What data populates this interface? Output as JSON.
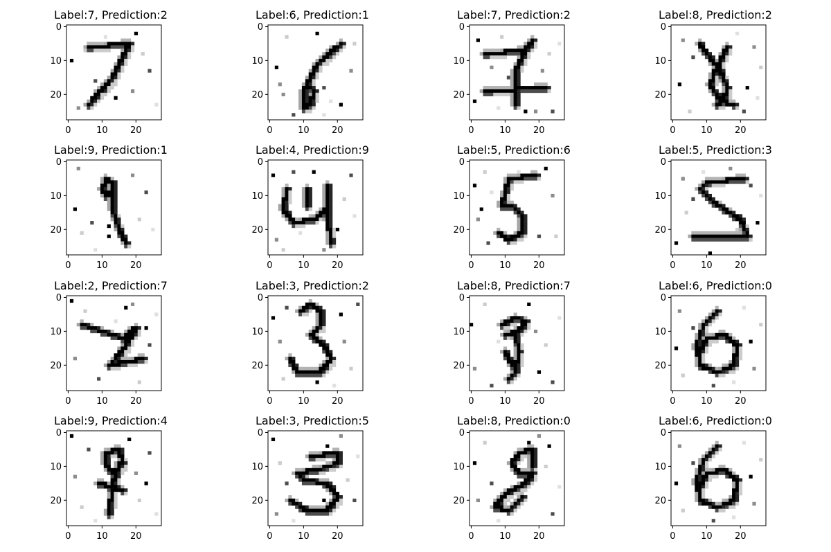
{
  "panels": [
    {
      "title": "Label:7, Prediction:2",
      "label": 7,
      "prediction": 2,
      "strokes": [
        [
          [
            6,
            6
          ],
          [
            18,
            5
          ]
        ],
        [
          [
            18,
            5
          ],
          [
            13,
            15
          ],
          [
            6,
            23
          ]
        ]
      ],
      "noise": [
        [
          1,
          10
        ],
        [
          3,
          24
        ],
        [
          5,
          7
        ],
        [
          8,
          16
        ],
        [
          11,
          3
        ],
        [
          14,
          21
        ],
        [
          19,
          19
        ],
        [
          22,
          8
        ],
        [
          24,
          13
        ],
        [
          26,
          23
        ],
        [
          20,
          2
        ]
      ]
    },
    {
      "title": "Label:6, Prediction:1",
      "label": 6,
      "prediction": 1,
      "strokes": [
        [
          [
            21,
            5
          ],
          [
            14,
            11
          ],
          [
            10,
            19
          ],
          [
            10,
            24
          ],
          [
            12,
            23
          ],
          [
            13,
            19
          ],
          [
            11,
            17
          ]
        ]
      ],
      "noise": [
        [
          2,
          12
        ],
        [
          4,
          20
        ],
        [
          5,
          3
        ],
        [
          16,
          18
        ],
        [
          18,
          22
        ],
        [
          21,
          23
        ],
        [
          24,
          13
        ],
        [
          25,
          5
        ],
        [
          7,
          26
        ],
        [
          16,
          26
        ],
        [
          14,
          2
        ],
        [
          3,
          17
        ]
      ]
    },
    {
      "title": "Label:7, Prediction:2",
      "label": 7,
      "prediction": 2,
      "strokes": [
        [
          [
            4,
            8
          ],
          [
            16,
            7
          ],
          [
            18,
            4
          ]
        ],
        [
          [
            17,
            5
          ],
          [
            13,
            13
          ],
          [
            13,
            23
          ]
        ],
        [
          [
            4,
            19
          ],
          [
            22,
            18
          ]
        ]
      ],
      "noise": [
        [
          2,
          4
        ],
        [
          6,
          12
        ],
        [
          9,
          3
        ],
        [
          11,
          15
        ],
        [
          8,
          24
        ],
        [
          16,
          25
        ],
        [
          21,
          13
        ],
        [
          23,
          8
        ],
        [
          24,
          25
        ],
        [
          26,
          5
        ],
        [
          1,
          22
        ],
        [
          19,
          25
        ]
      ]
    },
    {
      "title": "Label:8, Prediction:2",
      "label": 8,
      "prediction": 2,
      "strokes": [
        [
          [
            8,
            5
          ],
          [
            10,
            8
          ],
          [
            14,
            13
          ],
          [
            16,
            18
          ],
          [
            15,
            22
          ],
          [
            13,
            23
          ]
        ],
        [
          [
            16,
            6
          ],
          [
            14,
            10
          ],
          [
            12,
            14
          ],
          [
            11,
            17
          ],
          [
            14,
            22
          ],
          [
            18,
            23
          ]
        ]
      ],
      "noise": [
        [
          2,
          17
        ],
        [
          3,
          4
        ],
        [
          5,
          25
        ],
        [
          6,
          9
        ],
        [
          19,
          2
        ],
        [
          22,
          18
        ],
        [
          24,
          6
        ],
        [
          26,
          12
        ],
        [
          21,
          25
        ],
        [
          25,
          21
        ]
      ]
    },
    {
      "title": "Label:9, Prediction:1",
      "label": 9,
      "prediction": 1,
      "strokes": [
        [
          [
            10,
            8
          ],
          [
            11,
            5
          ],
          [
            13,
            6
          ],
          [
            13,
            9
          ],
          [
            11,
            10
          ],
          [
            10,
            8
          ]
        ],
        [
          [
            13,
            7
          ],
          [
            13,
            14
          ],
          [
            15,
            20
          ],
          [
            17,
            24
          ]
        ]
      ],
      "noise": [
        [
          2,
          14
        ],
        [
          3,
          2
        ],
        [
          4,
          21
        ],
        [
          7,
          18
        ],
        [
          8,
          26
        ],
        [
          12,
          22
        ],
        [
          19,
          4
        ],
        [
          21,
          17
        ],
        [
          23,
          9
        ],
        [
          25,
          20
        ],
        [
          12,
          19
        ]
      ]
    },
    {
      "title": "Label:4, Prediction:9",
      "label": 4,
      "prediction": 9,
      "strokes": [
        [
          [
            5,
            8
          ],
          [
            4,
            14
          ],
          [
            7,
            18
          ],
          [
            13,
            17
          ],
          [
            17,
            14
          ]
        ],
        [
          [
            17,
            7
          ],
          [
            17,
            16
          ],
          [
            18,
            24
          ]
        ],
        [
          [
            11,
            8
          ],
          [
            11,
            13
          ]
        ]
      ],
      "noise": [
        [
          1,
          4
        ],
        [
          2,
          23
        ],
        [
          4,
          26
        ],
        [
          7,
          3
        ],
        [
          9,
          21
        ],
        [
          13,
          3
        ],
        [
          16,
          26
        ],
        [
          22,
          11
        ],
        [
          24,
          4
        ],
        [
          25,
          16
        ],
        [
          20,
          20
        ]
      ]
    },
    {
      "title": "Label:5, Prediction:6",
      "label": 5,
      "prediction": 6,
      "strokes": [
        [
          [
            19,
            4
          ],
          [
            11,
            5
          ],
          [
            9,
            13
          ],
          [
            12,
            13
          ],
          [
            15,
            16
          ],
          [
            15,
            21
          ],
          [
            11,
            23
          ],
          [
            8,
            21
          ]
        ]
      ],
      "noise": [
        [
          1,
          7
        ],
        [
          2,
          17
        ],
        [
          4,
          3
        ],
        [
          5,
          24
        ],
        [
          6,
          9
        ],
        [
          22,
          2
        ],
        [
          24,
          10
        ],
        [
          25,
          22
        ],
        [
          20,
          22
        ],
        [
          14,
          3
        ],
        [
          3,
          14
        ]
      ]
    },
    {
      "title": "Label:5, Prediction:3",
      "label": 5,
      "prediction": 3,
      "strokes": [
        [
          [
            21,
            5
          ],
          [
            10,
            6
          ],
          [
            8,
            8
          ],
          [
            12,
            12
          ],
          [
            20,
            17
          ],
          [
            22,
            22
          ],
          [
            13,
            22
          ],
          [
            6,
            22
          ]
        ]
      ],
      "noise": [
        [
          1,
          24
        ],
        [
          3,
          5
        ],
        [
          4,
          15
        ],
        [
          6,
          11
        ],
        [
          9,
          3
        ],
        [
          11,
          27
        ],
        [
          17,
          2
        ],
        [
          19,
          20
        ],
        [
          23,
          7
        ],
        [
          26,
          10
        ],
        [
          25,
          18
        ]
      ]
    },
    {
      "title": "Label:2, Prediction:7",
      "label": 2,
      "prediction": 7,
      "strokes": [
        [
          [
            4,
            8
          ],
          [
            10,
            10
          ],
          [
            16,
            12
          ],
          [
            20,
            9
          ],
          [
            17,
            14
          ],
          [
            13,
            19
          ],
          [
            12,
            20
          ],
          [
            17,
            19
          ],
          [
            22,
            18
          ]
        ]
      ],
      "noise": [
        [
          1,
          1
        ],
        [
          2,
          18
        ],
        [
          5,
          4
        ],
        [
          9,
          24
        ],
        [
          14,
          7
        ],
        [
          17,
          3
        ],
        [
          19,
          2
        ],
        [
          21,
          25
        ],
        [
          24,
          14
        ],
        [
          26,
          5
        ],
        [
          23,
          9
        ]
      ]
    },
    {
      "title": "Label:3, Prediction:2",
      "label": 3,
      "prediction": 2,
      "strokes": [
        [
          [
            9,
            4
          ],
          [
            12,
            2
          ],
          [
            15,
            4
          ],
          [
            15,
            8
          ],
          [
            12,
            11
          ],
          [
            16,
            14
          ],
          [
            18,
            18
          ],
          [
            15,
            22
          ],
          [
            8,
            22
          ],
          [
            6,
            18
          ]
        ]
      ],
      "noise": [
        [
          1,
          6
        ],
        [
          3,
          13
        ],
        [
          4,
          24
        ],
        [
          5,
          3
        ],
        [
          7,
          21
        ],
        [
          21,
          5
        ],
        [
          22,
          13
        ],
        [
          24,
          21
        ],
        [
          26,
          2
        ],
        [
          19,
          26
        ],
        [
          14,
          25
        ]
      ]
    },
    {
      "title": "Label:8, Prediction:7",
      "label": 8,
      "prediction": 7,
      "strokes": [
        [
          [
            9,
            8
          ],
          [
            13,
            6
          ],
          [
            16,
            7
          ],
          [
            14,
            10
          ],
          [
            10,
            11
          ]
        ],
        [
          [
            13,
            11
          ],
          [
            14,
            16
          ],
          [
            13,
            22
          ],
          [
            11,
            24
          ]
        ],
        [
          [
            10,
            16
          ],
          [
            12,
            20
          ]
        ]
      ],
      "noise": [
        [
          0,
          8
        ],
        [
          1,
          21
        ],
        [
          4,
          2
        ],
        [
          6,
          26
        ],
        [
          8,
          13
        ],
        [
          17,
          2
        ],
        [
          19,
          10
        ],
        [
          22,
          14
        ],
        [
          24,
          25
        ],
        [
          26,
          6
        ],
        [
          20,
          22
        ]
      ]
    },
    {
      "title": "Label:6, Prediction:0",
      "label": 6,
      "prediction": 0,
      "strokes": [
        [
          [
            13,
            4
          ],
          [
            9,
            8
          ],
          [
            7,
            14
          ],
          [
            8,
            20
          ],
          [
            13,
            22
          ],
          [
            18,
            20
          ],
          [
            19,
            14
          ],
          [
            15,
            11
          ],
          [
            10,
            12
          ],
          [
            8,
            16
          ]
        ]
      ],
      "noise": [
        [
          1,
          15
        ],
        [
          2,
          4
        ],
        [
          3,
          23
        ],
        [
          6,
          9
        ],
        [
          21,
          3
        ],
        [
          23,
          13
        ],
        [
          24,
          21
        ],
        [
          26,
          8
        ],
        [
          12,
          26
        ],
        [
          18,
          25
        ]
      ]
    },
    {
      "title": "Label:9, Prediction:4",
      "label": 9,
      "prediction": 4,
      "strokes": [
        [
          [
            11,
            6
          ],
          [
            15,
            5
          ],
          [
            16,
            9
          ],
          [
            13,
            12
          ],
          [
            11,
            9
          ],
          [
            11,
            6
          ]
        ],
        [
          [
            15,
            9
          ],
          [
            13,
            16
          ],
          [
            12,
            24
          ]
        ],
        [
          [
            9,
            15
          ],
          [
            16,
            17
          ]
        ]
      ],
      "noise": [
        [
          1,
          1
        ],
        [
          2,
          13
        ],
        [
          4,
          22
        ],
        [
          6,
          5
        ],
        [
          8,
          26
        ],
        [
          18,
          2
        ],
        [
          20,
          12
        ],
        [
          21,
          20
        ],
        [
          24,
          6
        ],
        [
          26,
          24
        ],
        [
          23,
          15
        ]
      ]
    },
    {
      "title": "Label:3, Prediction:5",
      "label": 3,
      "prediction": 5,
      "strokes": [
        [
          [
            12,
            7
          ],
          [
            20,
            6
          ],
          [
            20,
            9
          ],
          [
            14,
            11
          ],
          [
            8,
            12
          ],
          [
            10,
            14
          ],
          [
            17,
            15
          ],
          [
            20,
            19
          ],
          [
            17,
            23
          ],
          [
            11,
            23
          ],
          [
            6,
            20
          ]
        ]
      ],
      "noise": [
        [
          1,
          2
        ],
        [
          2,
          24
        ],
        [
          3,
          9
        ],
        [
          5,
          15
        ],
        [
          7,
          26
        ],
        [
          17,
          4
        ],
        [
          21,
          1
        ],
        [
          23,
          14
        ],
        [
          25,
          20
        ],
        [
          26,
          7
        ],
        [
          16,
          20
        ]
      ]
    },
    {
      "title": "Label:8, Prediction:0",
      "label": 8,
      "prediction": 0,
      "strokes": [
        [
          [
            18,
            5
          ],
          [
            14,
            6
          ],
          [
            12,
            9
          ],
          [
            14,
            12
          ],
          [
            18,
            12
          ],
          [
            16,
            15
          ],
          [
            10,
            18
          ],
          [
            7,
            22
          ],
          [
            11,
            23
          ],
          [
            15,
            19
          ]
        ],
        [
          [
            18,
            5
          ],
          [
            18,
            10
          ]
        ]
      ],
      "noise": [
        [
          1,
          9
        ],
        [
          2,
          20
        ],
        [
          4,
          3
        ],
        [
          6,
          15
        ],
        [
          8,
          26
        ],
        [
          17,
          3
        ],
        [
          20,
          1
        ],
        [
          22,
          10
        ],
        [
          24,
          24
        ],
        [
          26,
          16
        ],
        [
          23,
          4
        ]
      ]
    },
    {
      "title": "Label:6, Prediction:0",
      "label": 6,
      "prediction": 0,
      "strokes": [
        [
          [
            13,
            4
          ],
          [
            9,
            8
          ],
          [
            7,
            14
          ],
          [
            8,
            20
          ],
          [
            13,
            22
          ],
          [
            18,
            20
          ],
          [
            19,
            14
          ],
          [
            15,
            11
          ],
          [
            10,
            12
          ],
          [
            8,
            16
          ]
        ]
      ],
      "noise": [
        [
          1,
          15
        ],
        [
          2,
          4
        ],
        [
          3,
          23
        ],
        [
          6,
          9
        ],
        [
          21,
          3
        ],
        [
          23,
          13
        ],
        [
          24,
          21
        ],
        [
          26,
          8
        ],
        [
          12,
          26
        ],
        [
          18,
          25
        ]
      ]
    }
  ],
  "axes": {
    "x_ticks": [
      "0",
      "10",
      "20"
    ],
    "y_ticks": [
      "0",
      "10",
      "20"
    ],
    "tick_values": [
      0,
      10,
      20
    ],
    "image_size": [
      28,
      28
    ],
    "colormap": "gray_r"
  },
  "colors": {
    "background": "#ffffff",
    "axes": "#000000",
    "ink": "#000000",
    "mid_gray": "#777777",
    "light_gray": "#cccccc"
  }
}
